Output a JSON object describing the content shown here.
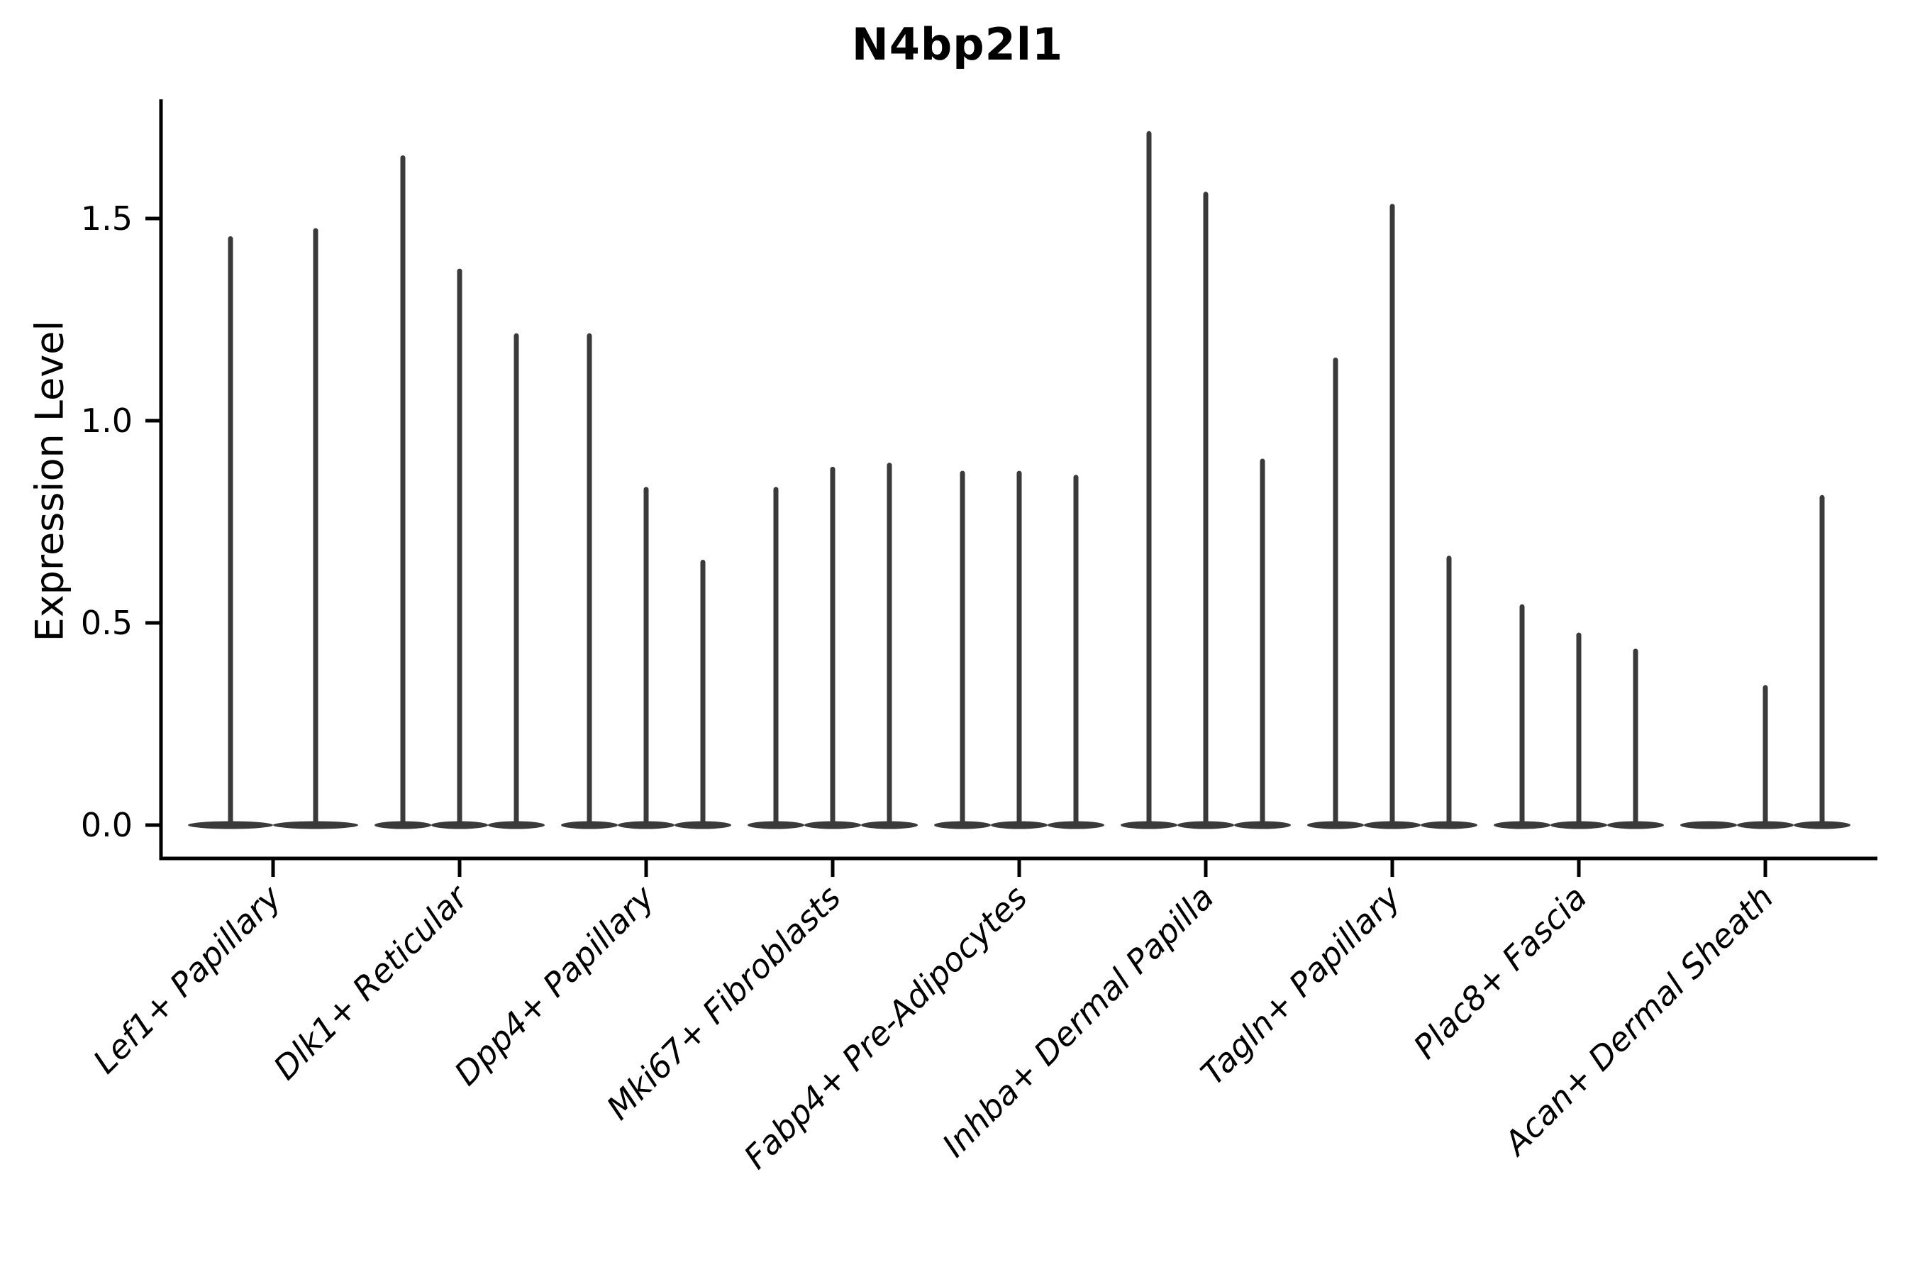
{
  "chart_data": {
    "type": "violin",
    "title": "N4bp2l1",
    "ylabel": "Expression Level",
    "xlabel": "",
    "ytick_values": [
      0.0,
      0.5,
      1.0,
      1.5
    ],
    "ytick_labels": [
      "0.0",
      "0.5",
      "1.0",
      "1.5"
    ],
    "ylim": [
      -0.08,
      1.79
    ],
    "grid": false,
    "legend": false,
    "style": {
      "violin_color": "#3a3a3a",
      "axis_color": "#000000",
      "text_color": "#000000",
      "background": "#ffffff"
    },
    "categories": [
      "Lef1+ Papillary",
      "Dlk1+ Reticular",
      "Dpp4+ Papillary",
      "Mki67+ Fibroblasts",
      "Fabp4+ Pre-Adipocytes",
      "Inhba+ Dermal Papilla",
      "Tagln+ Papillary",
      "Plac8+ Fascia",
      "Acan+ Dermal Sheath"
    ],
    "groups": [
      {
        "category": "Lef1+ Papillary",
        "violin_maxima": [
          1.45,
          1.47
        ]
      },
      {
        "category": "Dlk1+ Reticular",
        "violin_maxima": [
          1.65,
          1.37,
          1.21
        ]
      },
      {
        "category": "Dpp4+ Papillary",
        "violin_maxima": [
          1.21,
          0.83,
          0.65
        ]
      },
      {
        "category": "Mki67+ Fibroblasts",
        "violin_maxima": [
          0.83,
          0.88,
          0.89
        ]
      },
      {
        "category": "Fabp4+ Pre-Adipocytes",
        "violin_maxima": [
          0.87,
          0.87,
          0.86
        ]
      },
      {
        "category": "Inhba+ Dermal Papilla",
        "violin_maxima": [
          1.71,
          1.56,
          0.9
        ]
      },
      {
        "category": "Tagln+ Papillary",
        "violin_maxima": [
          1.15,
          1.53,
          0.66
        ]
      },
      {
        "category": "Plac8+ Fascia",
        "violin_maxima": [
          0.54,
          0.47,
          0.43
        ]
      },
      {
        "category": "Acan+ Dermal Sheath",
        "violin_maxima": [
          0.0,
          0.34,
          0.81
        ]
      }
    ]
  }
}
